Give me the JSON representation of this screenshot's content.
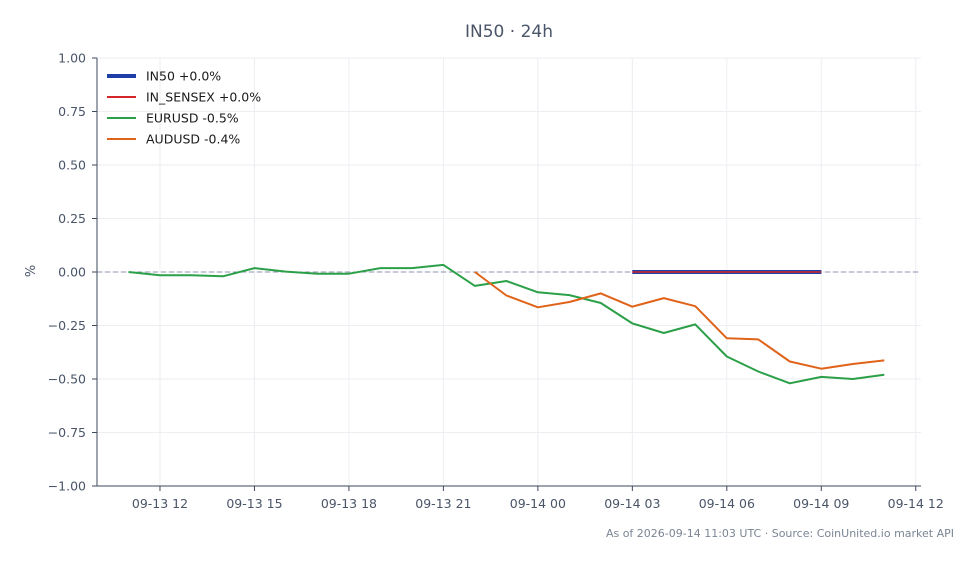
{
  "chart_data": {
    "type": "line",
    "title": "IN50 · 24h",
    "xlabel": "",
    "ylabel": "%",
    "ylim": [
      -1.0,
      1.0
    ],
    "xlim": [
      "2026-09-13 10:00",
      "2026-09-14 12:10"
    ],
    "yticks": [
      "1.00",
      "0.75",
      "0.50",
      "0.25",
      "0.00",
      "−0.25",
      "−0.50",
      "−0.75",
      "−1.00"
    ],
    "ytick_values": [
      1.0,
      0.75,
      0.5,
      0.25,
      0.0,
      -0.25,
      -0.5,
      -0.75,
      -1.0
    ],
    "xticks": [
      "09-13 12",
      "09-13 15",
      "09-13 18",
      "09-13 21",
      "09-14 00",
      "09-14 03",
      "09-14 06",
      "09-14 09",
      "09-14 12"
    ],
    "xtick_values": [
      "2026-09-13 12:00",
      "2026-09-13 15:00",
      "2026-09-13 18:00",
      "2026-09-13 21:00",
      "2026-09-14 00:00",
      "2026-09-14 03:00",
      "2026-09-14 06:00",
      "2026-09-14 09:00",
      "2026-09-14 12:00"
    ],
    "grid": true,
    "legend_position": "top-left",
    "reference_line": 0.0,
    "series": [
      {
        "name": "IN50 +0.0%",
        "color": "#1f3fa6",
        "x": [
          "2026-09-14 03:00",
          "2026-09-14 04:00",
          "2026-09-14 05:00",
          "2026-09-14 06:00",
          "2026-09-14 07:00",
          "2026-09-14 08:00",
          "2026-09-14 09:00"
        ],
        "y": [
          0.0,
          0.0,
          0.0,
          0.0,
          0.0,
          0.0,
          0.0
        ]
      },
      {
        "name": "IN_SENSEX +0.0%",
        "color": "#d62728",
        "x": [
          "2026-09-14 03:00",
          "2026-09-14 04:00",
          "2026-09-14 05:00",
          "2026-09-14 06:00",
          "2026-09-14 07:00",
          "2026-09-14 08:00",
          "2026-09-14 09:00"
        ],
        "y": [
          0.0,
          0.0,
          0.0,
          0.0,
          0.0,
          0.0,
          0.0
        ]
      },
      {
        "name": "EURUSD -0.5%",
        "color": "#2ca048",
        "x": [
          "2026-09-13 11:00",
          "2026-09-13 12:00",
          "2026-09-13 13:00",
          "2026-09-13 14:00",
          "2026-09-13 15:00",
          "2026-09-13 16:00",
          "2026-09-13 17:00",
          "2026-09-13 18:00",
          "2026-09-13 19:00",
          "2026-09-13 20:00",
          "2026-09-13 21:00",
          "2026-09-13 22:00",
          "2026-09-13 23:00",
          "2026-09-14 00:00",
          "2026-09-14 01:00",
          "2026-09-14 02:00",
          "2026-09-14 03:00",
          "2026-09-14 04:00",
          "2026-09-14 05:00",
          "2026-09-14 06:00",
          "2026-09-14 07:00",
          "2026-09-14 08:00",
          "2026-09-14 09:00",
          "2026-09-14 10:00",
          "2026-09-14 11:00"
        ],
        "y": [
          0.0,
          -0.015,
          -0.015,
          -0.02,
          0.018,
          0.002,
          -0.008,
          -0.008,
          0.018,
          0.018,
          0.033,
          -0.065,
          -0.042,
          -0.095,
          -0.108,
          -0.145,
          -0.24,
          -0.285,
          -0.245,
          -0.395,
          -0.465,
          -0.52,
          -0.49,
          -0.5,
          -0.48
        ]
      },
      {
        "name": "AUDUSD -0.4%",
        "color": "#e0631a",
        "x": [
          "2026-09-13 22:00",
          "2026-09-13 23:00",
          "2026-09-14 00:00",
          "2026-09-14 01:00",
          "2026-09-14 02:00",
          "2026-09-14 03:00",
          "2026-09-14 04:00",
          "2026-09-14 05:00",
          "2026-09-14 06:00",
          "2026-09-14 07:00",
          "2026-09-14 08:00",
          "2026-09-14 09:00",
          "2026-09-14 10:00",
          "2026-09-14 11:00"
        ],
        "y": [
          0.0,
          -0.11,
          -0.165,
          -0.14,
          -0.1,
          -0.162,
          -0.122,
          -0.16,
          -0.31,
          -0.315,
          -0.418,
          -0.452,
          -0.43,
          -0.413
        ]
      }
    ]
  },
  "footer": "As of 2026-09-14 11:03 UTC · Source: CoinUnited.io market API"
}
